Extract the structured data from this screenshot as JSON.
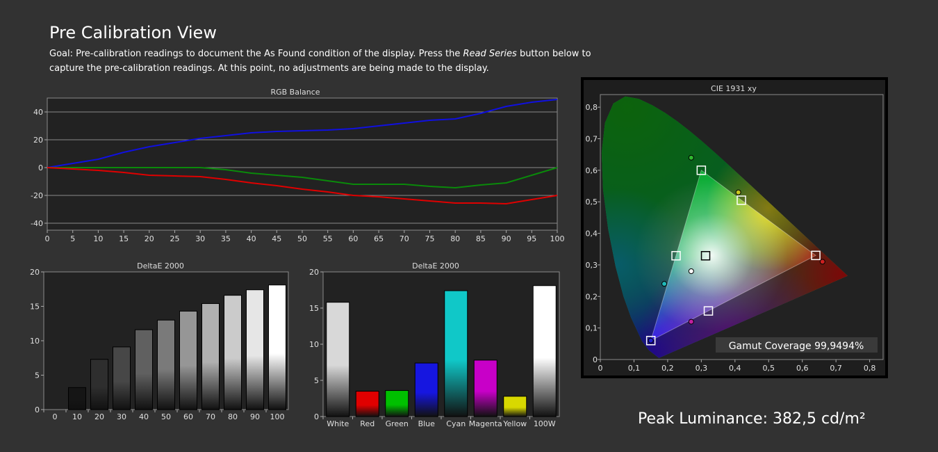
{
  "header": {
    "title": "Pre Calibration View",
    "goal_pre": "Goal: Pre-calibration readings to document the As Found condition of the display. Press the ",
    "goal_em": "Read Series",
    "goal_post": " button below to capture the pre-calibration readings. At this point, no adjustments are being made to the display."
  },
  "peak_luminance": "Peak Luminance: 382,5 cd/m²",
  "colors": {
    "background": "#323232",
    "plot_bg": "#222222",
    "red": "#e00000",
    "green": "#0a8a0a",
    "blue": "#1010e0"
  },
  "chart_data": [
    {
      "type": "line",
      "title": "RGB Balance",
      "x": [
        0,
        5,
        10,
        15,
        20,
        25,
        30,
        35,
        40,
        45,
        50,
        55,
        60,
        65,
        70,
        75,
        80,
        85,
        90,
        95,
        100
      ],
      "xticks": [
        "0",
        "5",
        "10",
        "15",
        "20",
        "25",
        "30",
        "35",
        "40",
        "45",
        "50",
        "55",
        "60",
        "65",
        "70",
        "75",
        "80",
        "85",
        "90",
        "95",
        "100"
      ],
      "yticks": [
        "40",
        "20",
        "0",
        "-20",
        "-40"
      ],
      "ylim": [
        -45,
        50
      ],
      "grid": true,
      "series": [
        {
          "color": "#1010e0",
          "values": [
            0,
            3,
            6,
            11,
            15,
            18,
            21,
            23,
            25,
            26,
            26.5,
            27,
            28,
            30,
            32,
            34,
            35,
            39,
            44,
            47,
            49
          ]
        },
        {
          "color": "#0a8a0a",
          "values": [
            0,
            0,
            0,
            0,
            0,
            0,
            0,
            -1.5,
            -4,
            -5.5,
            -7,
            -9.5,
            -12,
            -12,
            -12,
            -13.5,
            -14.5,
            -12.5,
            -11,
            -5.5,
            0
          ]
        },
        {
          "color": "#e00000",
          "values": [
            0,
            -1,
            -2,
            -3.5,
            -5.5,
            -6,
            -6.5,
            -8.5,
            -11,
            -13,
            -15.5,
            -17.5,
            -20,
            -21,
            -22.5,
            -24,
            -25.5,
            -25.5,
            -26,
            -23,
            -20
          ]
        }
      ]
    },
    {
      "type": "bar",
      "title": "DeltaE 2000",
      "categories": [
        "0",
        "10",
        "20",
        "30",
        "40",
        "50",
        "60",
        "70",
        "80",
        "90",
        "100"
      ],
      "values": [
        0,
        3.2,
        7.3,
        9.1,
        11.6,
        13,
        14.3,
        15.4,
        16.6,
        17.4,
        18.1
      ],
      "ylim": [
        0,
        20
      ],
      "yticks": [
        "20",
        "15",
        "10",
        "5",
        "0"
      ],
      "colors": [
        "#000000",
        "#151515",
        "#2e2e2e",
        "#474747",
        "#606060",
        "#7a7a7a",
        "#969696",
        "#b0b0b0",
        "#cbcbcb",
        "#e6e6e6",
        "#ffffff"
      ]
    },
    {
      "type": "bar",
      "title": "DeltaE 2000",
      "categories": [
        "White",
        "Red",
        "Green",
        "Blue",
        "Cyan",
        "Magenta",
        "Yellow",
        "100W"
      ],
      "values": [
        15.8,
        3.5,
        3.6,
        7.4,
        17.4,
        7.8,
        2.8,
        18.1
      ],
      "ylim": [
        0,
        20
      ],
      "yticks": [
        "20",
        "15",
        "10",
        "5",
        "0"
      ],
      "colors": [
        "#d8d8d8",
        "#e00000",
        "#00c000",
        "#1616e0",
        "#10c8c8",
        "#c800c8",
        "#d8d800",
        "#ffffff"
      ]
    },
    {
      "type": "scatter",
      "title": "CIE 1931 xy",
      "xticks": [
        "0",
        "0,1",
        "0,2",
        "0,3",
        "0,4",
        "0,5",
        "0,6",
        "0,7",
        "0,8"
      ],
      "yticks": [
        "0,8",
        "0,7",
        "0,6",
        "0,5",
        "0,4",
        "0,3",
        "0,2",
        "0,1",
        "0"
      ],
      "xlim": [
        0,
        0.84
      ],
      "ylim": [
        0,
        0.84
      ],
      "targets": [
        {
          "name": "Red",
          "x": 0.64,
          "y": 0.33
        },
        {
          "name": "Green",
          "x": 0.3,
          "y": 0.6
        },
        {
          "name": "Blue",
          "x": 0.15,
          "y": 0.06
        },
        {
          "name": "Cyan",
          "x": 0.225,
          "y": 0.329
        },
        {
          "name": "Magenta",
          "x": 0.321,
          "y": 0.154
        },
        {
          "name": "Yellow",
          "x": 0.419,
          "y": 0.505
        },
        {
          "name": "White",
          "x": 0.3127,
          "y": 0.329
        }
      ],
      "measured": [
        {
          "name": "Red",
          "x": 0.66,
          "y": 0.31,
          "color": "#cc2020"
        },
        {
          "name": "Green",
          "x": 0.27,
          "y": 0.64,
          "color": "#2fb82f"
        },
        {
          "name": "Blue",
          "x": 0.15,
          "y": 0.06,
          "color": "#2020d0"
        },
        {
          "name": "Cyan",
          "x": 0.19,
          "y": 0.24,
          "color": "#20b8b8"
        },
        {
          "name": "Magenta",
          "x": 0.27,
          "y": 0.12,
          "color": "#c020a0"
        },
        {
          "name": "Yellow",
          "x": 0.41,
          "y": 0.53,
          "color": "#c8c820"
        },
        {
          "name": "White",
          "x": 0.27,
          "y": 0.28,
          "color": "#ffffff"
        }
      ],
      "gamut_coverage": "Gamut Coverage 99,9494%"
    }
  ]
}
